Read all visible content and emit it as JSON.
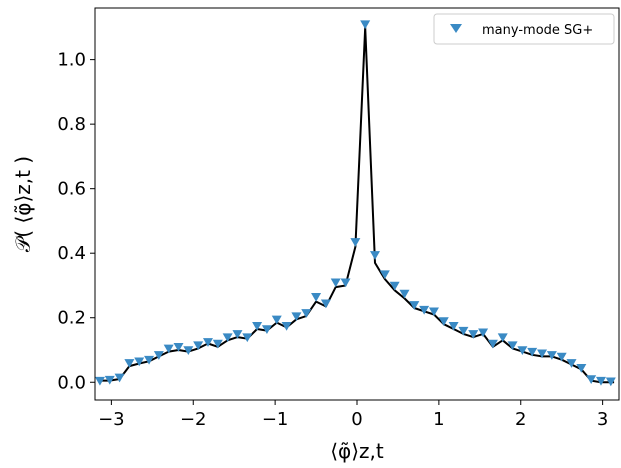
{
  "chart_data": {
    "type": "line",
    "title": "",
    "xlabel": "⟨φ̃⟩z,t",
    "ylabel": "𝒫( ⟨φ̃⟩z,t )",
    "xlim": [
      -3.2,
      3.2
    ],
    "ylim": [
      -0.055,
      1.16
    ],
    "xticks": [
      -3,
      -2,
      -1,
      0,
      1,
      2,
      3
    ],
    "xtick_labels": [
      "−3",
      "−2",
      "−1",
      "0",
      "1",
      "2",
      "3"
    ],
    "yticks": [
      0.0,
      0.2,
      0.4,
      0.6,
      0.8,
      1.0
    ],
    "ytick_labels": [
      "0.0",
      "0.2",
      "0.4",
      "0.6",
      "0.8",
      "1.0"
    ],
    "grid": false,
    "legend_position": "top-right",
    "series": [
      {
        "name": "",
        "style": "line",
        "color": "#000000",
        "x": [
          -3.14,
          -3.02,
          -2.9,
          -2.78,
          -2.66,
          -2.54,
          -2.42,
          -2.3,
          -2.18,
          -2.06,
          -1.94,
          -1.82,
          -1.7,
          -1.58,
          -1.46,
          -1.34,
          -1.22,
          -1.1,
          -0.98,
          -0.86,
          -0.74,
          -0.62,
          -0.5,
          -0.38,
          -0.26,
          -0.14,
          -0.02,
          0.1,
          0.22,
          0.34,
          0.46,
          0.58,
          0.7,
          0.82,
          0.94,
          1.06,
          1.18,
          1.3,
          1.42,
          1.54,
          1.66,
          1.78,
          1.9,
          2.02,
          2.14,
          2.26,
          2.38,
          2.5,
          2.62,
          2.74,
          2.86,
          2.98,
          3.1,
          3.14
        ],
        "y": [
          0.005,
          0.005,
          0.01,
          0.05,
          0.058,
          0.065,
          0.08,
          0.095,
          0.1,
          0.095,
          0.105,
          0.12,
          0.11,
          0.13,
          0.14,
          0.135,
          0.165,
          0.16,
          0.185,
          0.17,
          0.195,
          0.205,
          0.25,
          0.235,
          0.295,
          0.3,
          0.42,
          1.1,
          0.37,
          0.32,
          0.285,
          0.26,
          0.23,
          0.22,
          0.21,
          0.18,
          0.165,
          0.15,
          0.14,
          0.15,
          0.11,
          0.13,
          0.105,
          0.095,
          0.085,
          0.08,
          0.08,
          0.07,
          0.055,
          0.04,
          0.005,
          0.0,
          0.0,
          0.0
        ]
      },
      {
        "name": "many-mode SG+",
        "style": "markers",
        "marker": "triangle-down",
        "color": "#3a8ac4",
        "x": [
          -3.14,
          -3.02,
          -2.9,
          -2.78,
          -2.66,
          -2.54,
          -2.42,
          -2.3,
          -2.18,
          -2.06,
          -1.94,
          -1.82,
          -1.7,
          -1.58,
          -1.46,
          -1.34,
          -1.22,
          -1.1,
          -0.98,
          -0.86,
          -0.74,
          -0.62,
          -0.5,
          -0.38,
          -0.26,
          -0.14,
          -0.02,
          0.1,
          0.22,
          0.34,
          0.46,
          0.58,
          0.7,
          0.82,
          0.94,
          1.06,
          1.18,
          1.3,
          1.42,
          1.54,
          1.66,
          1.78,
          1.9,
          2.02,
          2.14,
          2.26,
          2.38,
          2.5,
          2.62,
          2.74,
          2.86,
          2.98,
          3.1
        ],
        "y": [
          0.005,
          0.008,
          0.015,
          0.06,
          0.065,
          0.07,
          0.085,
          0.105,
          0.11,
          0.1,
          0.115,
          0.125,
          0.12,
          0.14,
          0.15,
          0.14,
          0.175,
          0.165,
          0.195,
          0.175,
          0.205,
          0.215,
          0.265,
          0.245,
          0.31,
          0.31,
          0.435,
          1.11,
          0.395,
          0.335,
          0.3,
          0.275,
          0.24,
          0.225,
          0.22,
          0.19,
          0.175,
          0.16,
          0.15,
          0.155,
          0.12,
          0.14,
          0.115,
          0.1,
          0.095,
          0.09,
          0.085,
          0.08,
          0.06,
          0.045,
          0.01,
          0.005,
          0.003
        ]
      }
    ]
  }
}
